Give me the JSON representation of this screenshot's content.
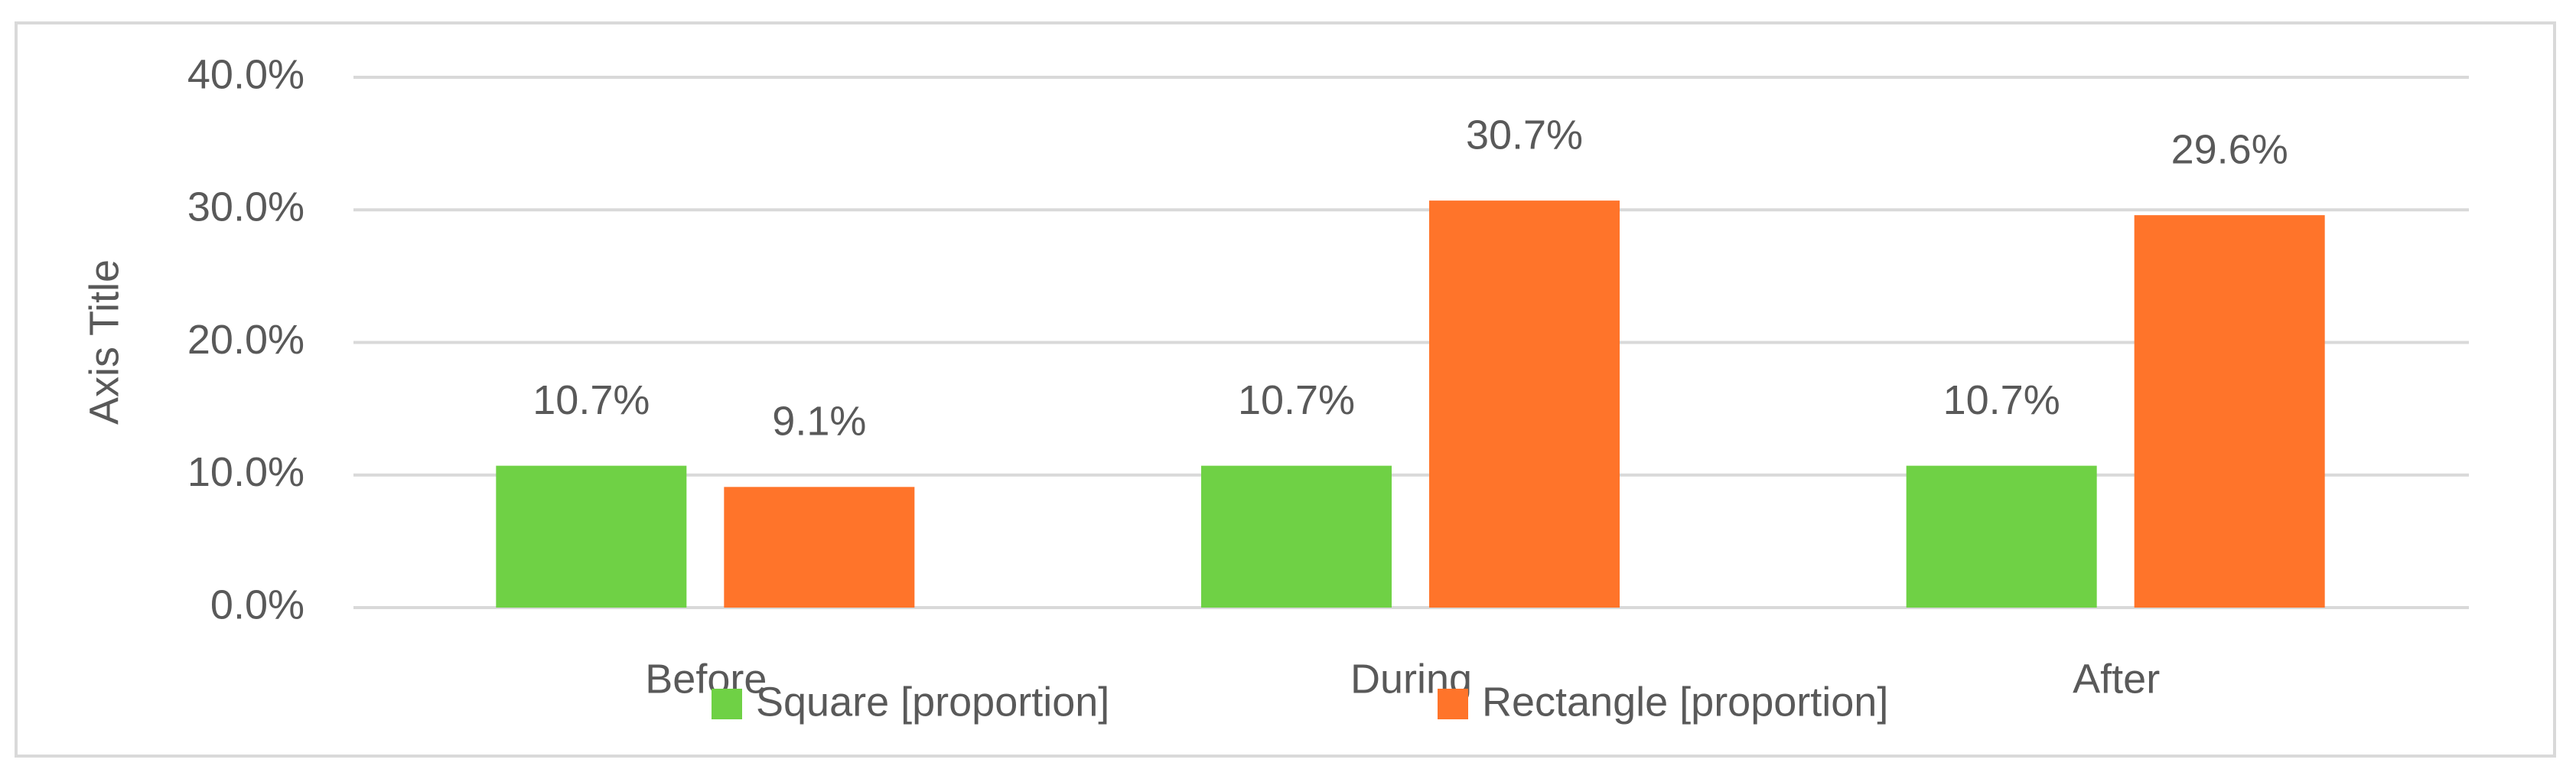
{
  "chart_data": {
    "type": "bar",
    "y_axis_title": "Axis Title",
    "categories": [
      "Before",
      "During",
      "After"
    ],
    "series": [
      {
        "name": "Square [proportion]",
        "color": "#6fd145",
        "values": [
          10.7,
          10.7,
          10.7
        ],
        "value_labels": [
          "10.7%",
          "10.7%",
          "10.7%"
        ]
      },
      {
        "name": "Rectangle [proportion]",
        "color": "#ff742a",
        "values": [
          9.1,
          30.7,
          29.6
        ],
        "value_labels": [
          "9.1%",
          "30.7%",
          "29.6%"
        ]
      }
    ],
    "ylim": [
      0,
      40
    ],
    "yticks": [
      {
        "value": 0,
        "label": "0.0%"
      },
      {
        "value": 10,
        "label": "10.0%"
      },
      {
        "value": 20,
        "label": "20.0%"
      },
      {
        "value": 30,
        "label": "30.0%"
      },
      {
        "value": 40,
        "label": "40.0%"
      }
    ],
    "grid": true,
    "legend": "bottom"
  }
}
